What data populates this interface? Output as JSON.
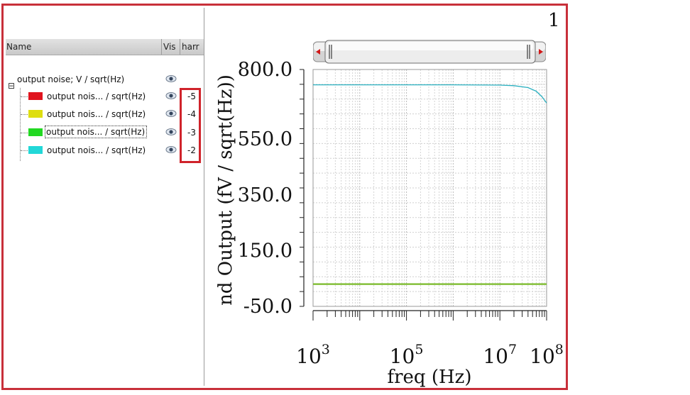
{
  "page_number": "1",
  "legend": {
    "columns": {
      "name": "Name",
      "vis": "Vis",
      "harm": "harr"
    },
    "parent": {
      "label": "output noise; V / sqrt(Hz)",
      "icon": "eye-icon"
    },
    "items": [
      {
        "label": "output nois... / sqrt(Hz)",
        "harmonic": "-5",
        "color": "#e0141e",
        "icon": "eye-icon"
      },
      {
        "label": "output nois... / sqrt(Hz)",
        "harmonic": "-4",
        "color": "#dede10",
        "icon": "eye-icon"
      },
      {
        "label": "output nois... / sqrt(Hz)",
        "harmonic": "-3",
        "color": "#22d822",
        "icon": "eye-icon"
      },
      {
        "label": "output nois... / sqrt(Hz)",
        "harmonic": "-2",
        "color": "#22d8d8",
        "icon": "eye-icon"
      }
    ]
  },
  "chart_data": {
    "type": "line",
    "title": "",
    "xlabel": "freq (Hz)",
    "ylabel": "nd Output (fV / sqrt(Hz))",
    "x_scale": "log",
    "xlim": [
      1000,
      100000000
    ],
    "ylim": [
      -50,
      800
    ],
    "yticks": [
      "800.0",
      "550.0",
      "350.0",
      "150.0",
      "-50.0"
    ],
    "ytick_values": [
      800,
      550,
      350,
      150,
      -50
    ],
    "xticks": [
      {
        "base": "10",
        "exp": "3",
        "value": 1000
      },
      {
        "base": "10",
        "exp": "5",
        "value": 100000
      },
      {
        "base": "10",
        "exp": "7",
        "value": 10000000
      },
      {
        "base": "10",
        "exp": "8",
        "value": 100000000
      }
    ],
    "grid": true,
    "series": [
      {
        "color": "#2ab0c0",
        "x": [
          1000,
          10000,
          100000,
          1000000,
          10000000,
          20000000,
          40000000,
          60000000,
          80000000,
          100000000
        ],
        "y": [
          745,
          745,
          745,
          745,
          744,
          742,
          735,
          722,
          702,
          680
        ]
      },
      {
        "color": "#7aba28",
        "x": [
          1000,
          100000000
        ],
        "y": [
          30,
          30
        ]
      }
    ]
  }
}
